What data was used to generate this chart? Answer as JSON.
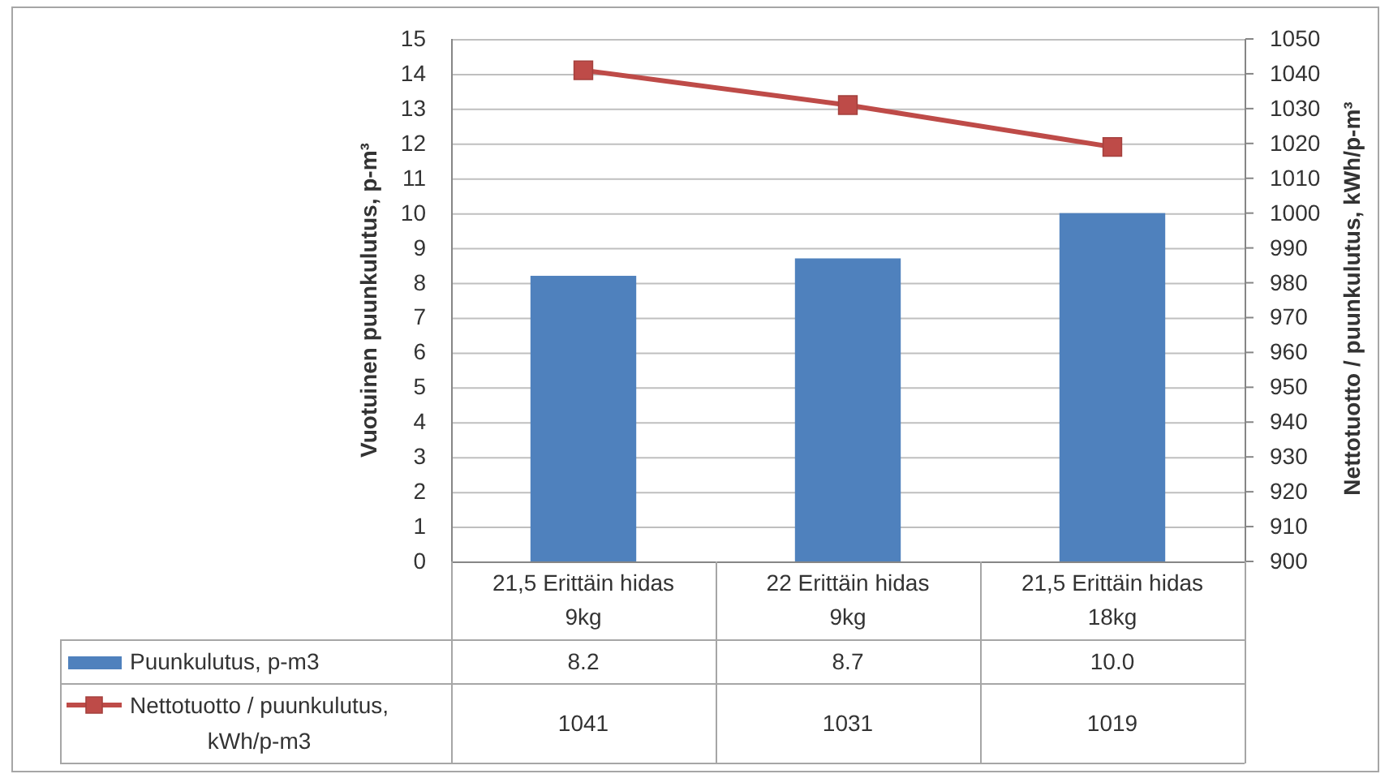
{
  "chart_data": {
    "type": "bar",
    "categories": [
      "21,5 Erittäin hidas\n9kg",
      "22 Erittäin hidas\n9kg",
      "21,5 Erittäin hidas\n18kg"
    ],
    "series": [
      {
        "name": "Puunkulutus, p-m3",
        "color": "#4f81bd",
        "values": [
          8.2,
          8.7,
          10.0
        ],
        "value_labels": [
          "8.2",
          "8.7",
          "10.0"
        ]
      },
      {
        "name": "Nettotuotto / puunkulutus, kWh/p-m3",
        "type": "line",
        "axis": "y2",
        "color": "#be4b48",
        "marker": "square",
        "values": [
          1041,
          1031,
          1019
        ],
        "value_labels": [
          "1041",
          "1031",
          "1019"
        ]
      }
    ],
    "ylabel": "Vuotuinen puunkulutus, p-m³",
    "y2label": "Nettotuotto / puunkulutus, kWh/p-m³",
    "ylim": [
      0,
      15
    ],
    "yticks": [
      0,
      1,
      2,
      3,
      4,
      5,
      6,
      7,
      8,
      9,
      10,
      11,
      12,
      13,
      14,
      15
    ],
    "y2lim": [
      900,
      1050
    ],
    "y2ticks": [
      900,
      910,
      920,
      930,
      940,
      950,
      960,
      970,
      980,
      990,
      1000,
      1010,
      1020,
      1030,
      1040,
      1050
    ],
    "grid": "y",
    "legend": "bottom"
  }
}
